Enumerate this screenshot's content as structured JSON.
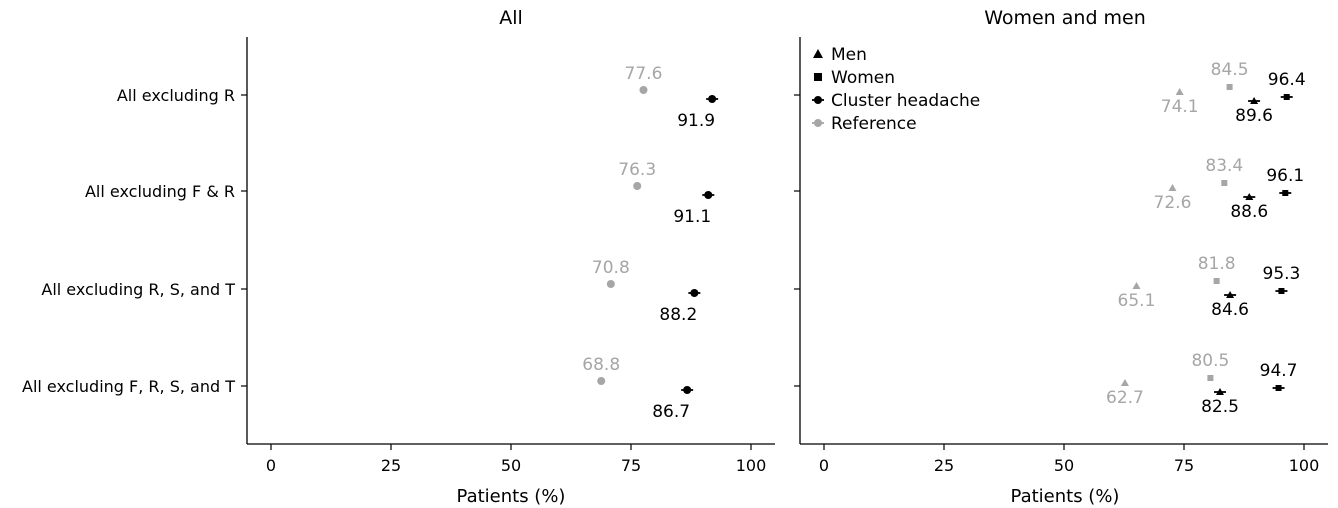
{
  "chart_data": [
    {
      "type": "scatter",
      "title": "All",
      "xlabel": "Patients (%)",
      "ylabel": "",
      "xlim": [
        -5,
        105
      ],
      "xticks": [
        "0",
        "25",
        "50",
        "75",
        "100"
      ],
      "categories": [
        "All excluding R",
        "All excluding F & R",
        "All excluding R, S, and T",
        "All excluding F, R, S, and T"
      ],
      "series": [
        {
          "role": "reference",
          "color": "#a6a6a6",
          "marker": "circle",
          "values": [
            77.6,
            76.3,
            70.8,
            68.8
          ]
        },
        {
          "role": "cluster",
          "color": "#000000",
          "marker": "circle",
          "values": [
            91.9,
            91.1,
            88.2,
            86.7
          ]
        }
      ],
      "grid": false
    },
    {
      "type": "scatter",
      "title": "Women and men",
      "xlabel": "Patients (%)",
      "ylabel": "",
      "xlim": [
        -5,
        105
      ],
      "xticks": [
        "0",
        "25",
        "50",
        "75",
        "100"
      ],
      "categories": [
        "All excluding R",
        "All excluding F & R",
        "All excluding R, S, and T",
        "All excluding F, R, S, and T"
      ],
      "legend": {
        "position": "top-left",
        "items": [
          {
            "label": "Men",
            "marker": "triangle",
            "color": "#000000"
          },
          {
            "label": "Women",
            "marker": "square",
            "color": "#000000"
          },
          {
            "label": "Cluster headache",
            "marker": "circle",
            "color": "#000000"
          },
          {
            "label": "Reference",
            "marker": "circle",
            "color": "#a6a6a6"
          }
        ]
      },
      "series": [
        {
          "name": "Men",
          "group": "Reference",
          "marker": "triangle",
          "color": "#a6a6a6",
          "values": [
            74.1,
            72.6,
            65.1,
            62.7
          ]
        },
        {
          "name": "Women",
          "group": "Reference",
          "marker": "square",
          "color": "#a6a6a6",
          "values": [
            84.5,
            83.4,
            81.8,
            80.5
          ]
        },
        {
          "name": "Men",
          "group": "Cluster headache",
          "marker": "triangle",
          "color": "#000000",
          "values": [
            89.6,
            88.6,
            84.6,
            82.5
          ]
        },
        {
          "name": "Women",
          "group": "Cluster headache",
          "marker": "square",
          "color": "#000000",
          "values": [
            96.4,
            96.1,
            95.3,
            94.7
          ]
        }
      ],
      "grid": false
    }
  ]
}
